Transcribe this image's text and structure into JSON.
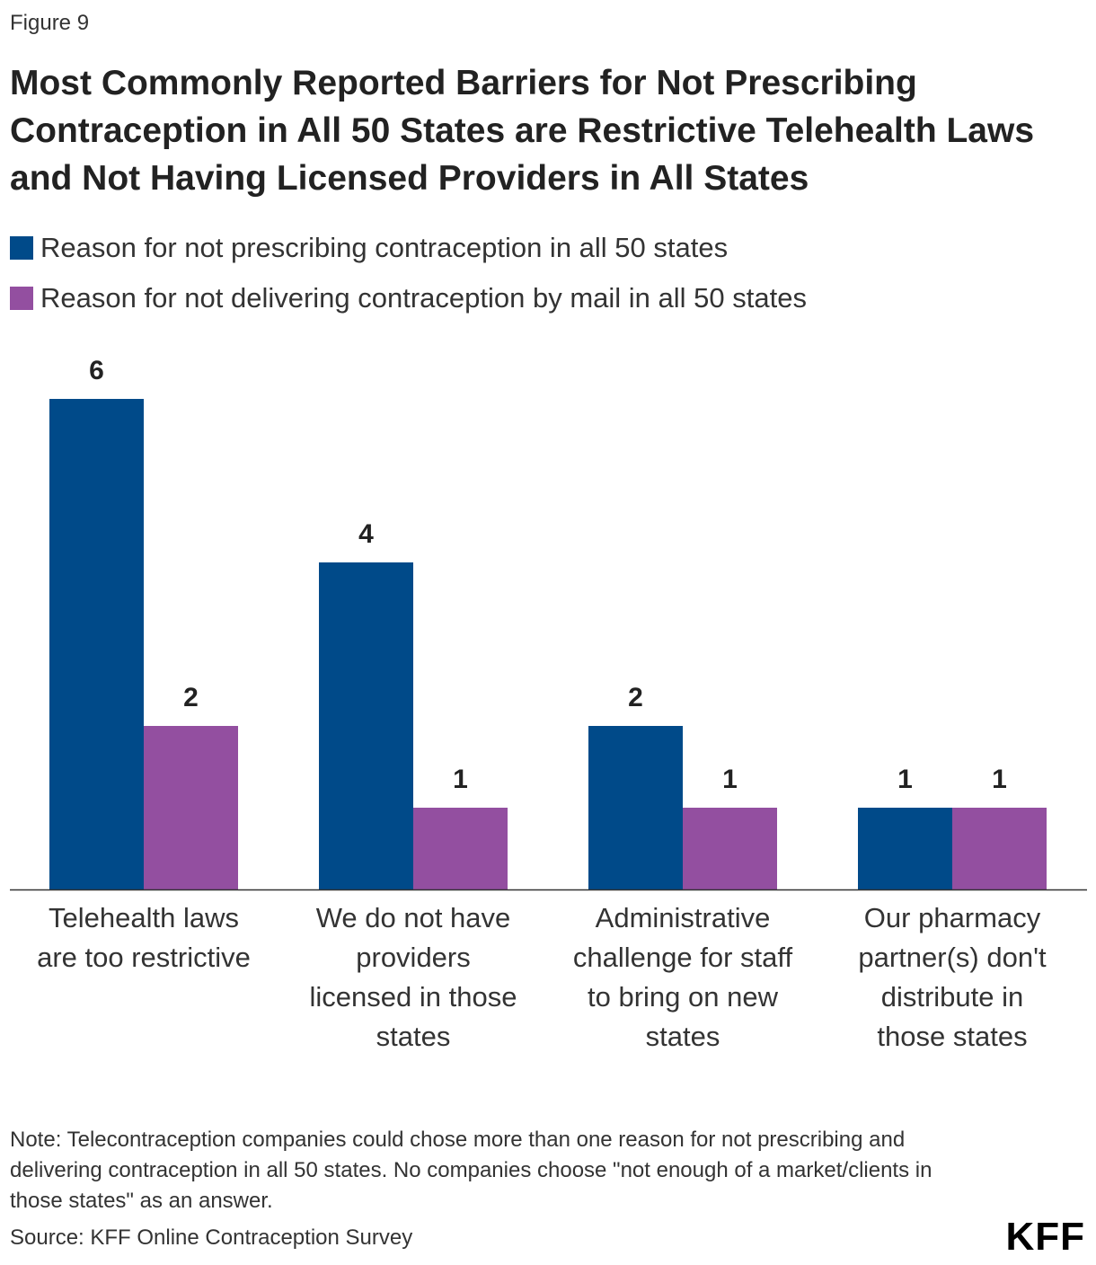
{
  "figure_label": "Figure 9",
  "title": "Most Commonly Reported Barriers for Not Prescribing Contraception in All 50 States are Restrictive Telehealth Laws and Not Having Licensed Providers in All States",
  "legend": [
    {
      "label": "Reason for not prescribing contraception in all 50 states",
      "color": "#004A89"
    },
    {
      "label": "Reason for not delivering contraception by mail in all 50 states",
      "color": "#934FA0"
    }
  ],
  "chart_data": {
    "type": "bar",
    "categories": [
      "Telehealth laws are too restrictive",
      "We do not have providers licensed in those states",
      "Administrative challenge for staff to bring on new states",
      "Our pharmacy partner(s) don't distribute in those states"
    ],
    "series": [
      {
        "name": "Reason for not prescribing contraception in all 50 states",
        "values": [
          6,
          4,
          2,
          1
        ],
        "color": "#004A89"
      },
      {
        "name": "Reason for not delivering contraception by mail in all 50 states",
        "values": [
          2,
          1,
          1,
          1
        ],
        "color": "#934FA0"
      }
    ],
    "ylim": [
      0,
      6
    ],
    "xlabel": "",
    "ylabel": "",
    "grid": false,
    "data_labels": true
  },
  "note": "Note: Telecontraception companies could chose more than one reason for not prescribing and delivering contraception in all 50 states. No companies choose \"not enough of a market/clients in those states\" as an answer.",
  "source": "Source: KFF Online Contraception Survey",
  "logo_text": "KFF"
}
